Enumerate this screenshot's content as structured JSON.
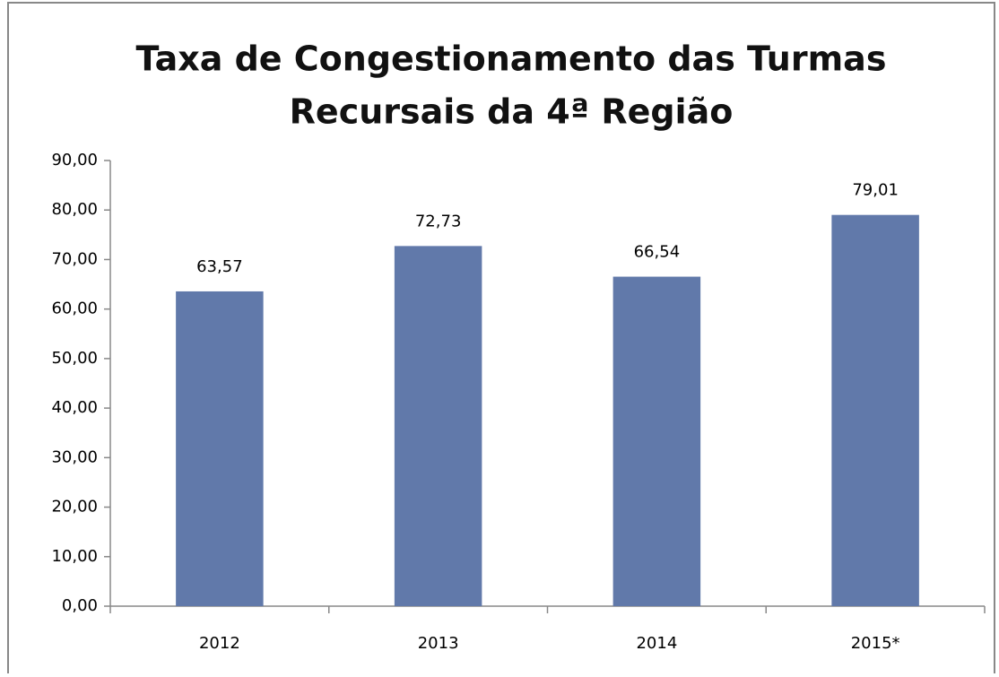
{
  "chart_data": {
    "type": "bar",
    "title": [
      "Taxa de Congestionamento das Turmas",
      "Recursais da 4ª Região"
    ],
    "categories": [
      "2012",
      "2013",
      "2014",
      "2015*"
    ],
    "values": [
      63.57,
      72.73,
      66.54,
      79.01
    ],
    "value_labels": [
      "63,57",
      "72,73",
      "66,54",
      "79,01"
    ],
    "color": "#6179aa",
    "ylim": [
      0,
      90
    ],
    "yticks": [
      {
        "value": 0,
        "label": "0,00"
      },
      {
        "value": 10,
        "label": "10,00"
      },
      {
        "value": 20,
        "label": "20,00"
      },
      {
        "value": 30,
        "label": "30,00"
      },
      {
        "value": 40,
        "label": "40,00"
      },
      {
        "value": 50,
        "label": "50,00"
      },
      {
        "value": 60,
        "label": "60,00"
      },
      {
        "value": 70,
        "label": "70,00"
      },
      {
        "value": 80,
        "label": "80,00"
      },
      {
        "value": 90,
        "label": "90,00"
      }
    ],
    "grid": false
  }
}
